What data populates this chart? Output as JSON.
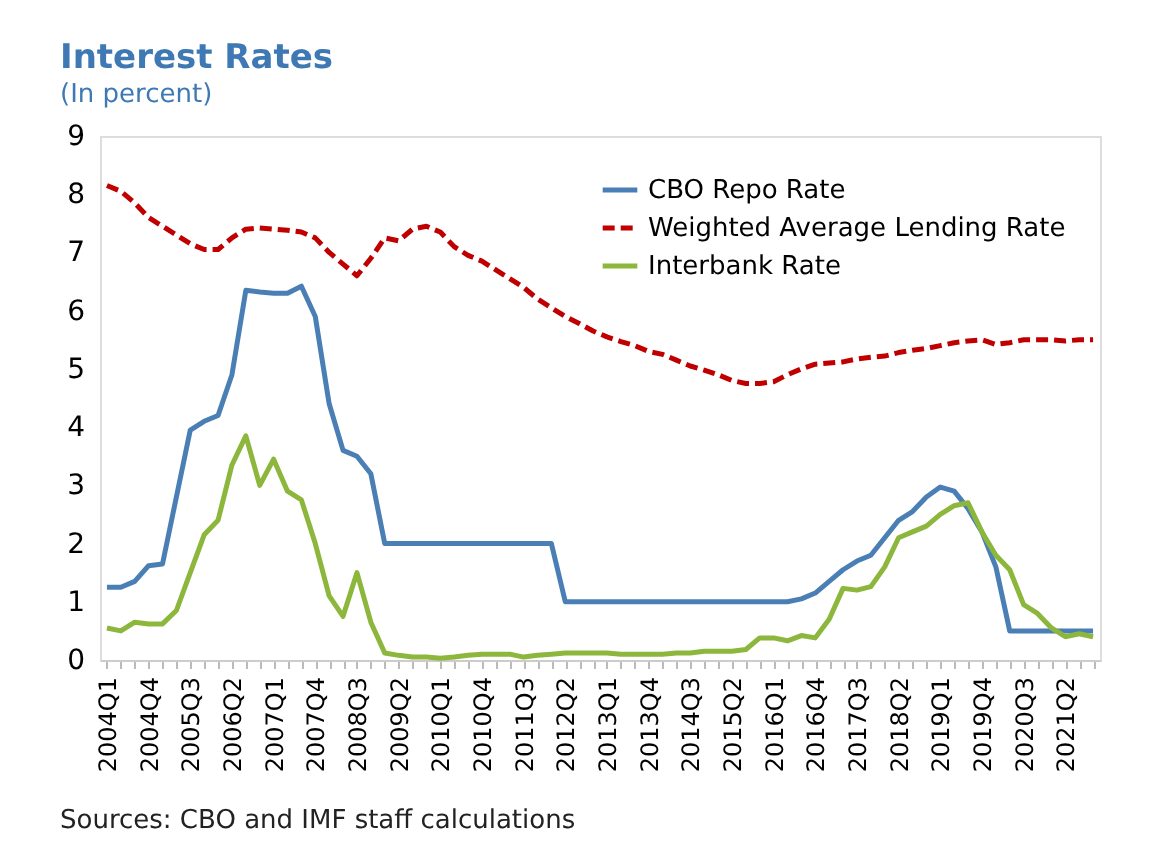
{
  "chart_data": {
    "type": "line",
    "title": "Interest Rates",
    "subtitle": "(In percent)",
    "categories": [
      "2004Q1",
      null,
      null,
      "2004Q4",
      null,
      null,
      "2005Q3",
      null,
      null,
      "2006Q2",
      null,
      null,
      "2007Q1",
      null,
      null,
      "2007Q4",
      null,
      null,
      "2008Q3",
      null,
      null,
      "2009Q2",
      null,
      null,
      "2010Q1",
      null,
      null,
      "2010Q4",
      null,
      null,
      "2011Q3",
      null,
      null,
      "2012Q2",
      null,
      null,
      "2013Q1",
      null,
      null,
      "2013Q4",
      null,
      null,
      "2014Q3",
      null,
      null,
      "2015Q2",
      null,
      null,
      "2016Q1",
      null,
      null,
      "2016Q4",
      null,
      null,
      "2017Q3",
      null,
      null,
      "2018Q2",
      null,
      null,
      "2019Q1",
      null,
      null,
      "2019Q4",
      null,
      null,
      "2020Q3",
      null,
      null,
      "2021Q2",
      null,
      null
    ],
    "series": [
      {
        "name": "CBO Repo Rate",
        "color": "#4a7fb5",
        "line_style": "solid",
        "values": [
          1.25,
          1.25,
          1.35,
          1.62,
          1.65,
          2.8,
          3.95,
          4.1,
          4.2,
          4.9,
          6.35,
          6.32,
          6.3,
          6.3,
          6.42,
          5.9,
          4.4,
          3.6,
          3.5,
          3.2,
          2.0,
          2.0,
          2.0,
          2.0,
          2.0,
          2.0,
          2.0,
          2.0,
          2.0,
          2.0,
          2.0,
          2.0,
          2.0,
          1.0,
          1.0,
          1.0,
          1.0,
          1.0,
          1.0,
          1.0,
          1.0,
          1.0,
          1.0,
          1.0,
          1.0,
          1.0,
          1.0,
          1.0,
          1.0,
          1.0,
          1.05,
          1.15,
          1.35,
          1.55,
          1.7,
          1.8,
          2.1,
          2.4,
          2.55,
          2.8,
          2.97,
          2.9,
          2.6,
          2.2,
          1.6,
          0.5,
          0.5,
          0.5,
          0.5,
          0.5,
          0.5,
          0.5
        ]
      },
      {
        "name": "Weighted Average Lending Rate",
        "color": "#c00000",
        "line_style": "dashed",
        "values": [
          8.15,
          8.05,
          7.85,
          7.6,
          7.45,
          7.3,
          7.15,
          7.05,
          7.05,
          7.25,
          7.4,
          7.42,
          7.4,
          7.38,
          7.35,
          7.25,
          7.0,
          6.8,
          6.6,
          6.9,
          7.25,
          7.2,
          7.4,
          7.45,
          7.35,
          7.1,
          6.95,
          6.85,
          6.7,
          6.55,
          6.4,
          6.2,
          6.05,
          5.9,
          5.78,
          5.65,
          5.55,
          5.47,
          5.4,
          5.3,
          5.25,
          5.15,
          5.05,
          4.98,
          4.9,
          4.8,
          4.75,
          4.75,
          4.78,
          4.9,
          5.0,
          5.08,
          5.1,
          5.12,
          5.17,
          5.2,
          5.22,
          5.28,
          5.32,
          5.35,
          5.4,
          5.45,
          5.48,
          5.5,
          5.42,
          5.45,
          5.5,
          5.5,
          5.5,
          5.48,
          5.5,
          5.5
        ]
      },
      {
        "name": "Interbank Rate",
        "color": "#8db63c",
        "line_style": "solid",
        "values": [
          0.55,
          0.5,
          0.65,
          0.62,
          0.62,
          0.85,
          1.5,
          2.15,
          2.4,
          3.35,
          3.85,
          3.0,
          3.45,
          2.9,
          2.75,
          2.0,
          1.1,
          0.75,
          1.5,
          0.65,
          0.12,
          0.08,
          0.05,
          0.05,
          0.03,
          0.05,
          0.08,
          0.1,
          0.1,
          0.1,
          0.05,
          0.08,
          0.1,
          0.12,
          0.12,
          0.12,
          0.12,
          0.1,
          0.1,
          0.1,
          0.1,
          0.12,
          0.12,
          0.15,
          0.15,
          0.15,
          0.18,
          0.38,
          0.38,
          0.33,
          0.42,
          0.38,
          0.7,
          1.23,
          1.2,
          1.26,
          1.6,
          2.1,
          2.2,
          2.3,
          2.5,
          2.65,
          2.7,
          2.2,
          1.8,
          1.55,
          0.95,
          0.8,
          0.55,
          0.4,
          0.45,
          0.4
        ]
      }
    ],
    "ylim": [
      0,
      9
    ],
    "yticks": [
      0,
      1,
      2,
      3,
      4,
      5,
      6,
      7,
      8,
      9
    ],
    "grid": false,
    "legend": "top right",
    "annotations": [
      "Sources: CBO and IMF staff calculations"
    ]
  }
}
